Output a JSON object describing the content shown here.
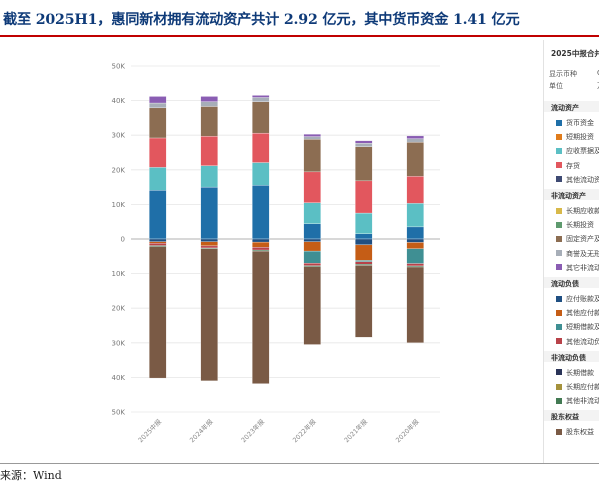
{
  "title": "截至 2025H1，惠同新材拥有流动资产共计 2.92 亿元，其中货币资金 1.41 亿元",
  "source": "来源：Wind",
  "panel": {
    "head": "2025中报合并",
    "meta": [
      {
        "label": "显示币种",
        "value": "C"
      },
      {
        "label": "单位",
        "value": "万"
      }
    ],
    "sections": [
      {
        "label": "流动资产",
        "items": [
          {
            "label": "货币资金",
            "color": "#1f6fa8"
          },
          {
            "label": "短期投资",
            "color": "#e07c1c"
          },
          {
            "label": "应收票据及",
            "color": "#5bbfc4"
          },
          {
            "label": "存货",
            "color": "#e2575e"
          },
          {
            "label": "其他流动资",
            "color": "#3e4a73"
          }
        ]
      },
      {
        "label": "非流动资产",
        "items": [
          {
            "label": "长期应收款",
            "color": "#d8b94a"
          },
          {
            "label": "长期投资",
            "color": "#5e9a6e"
          },
          {
            "label": "固定资产及",
            "color": "#8c6d52"
          },
          {
            "label": "商誉及无形",
            "color": "#a7aeb8"
          },
          {
            "label": "其它非流动",
            "color": "#8a5db3"
          }
        ]
      },
      {
        "label": "流动负债",
        "items": [
          {
            "label": "应付账款及",
            "color": "#1f4f82"
          },
          {
            "label": "其他应付款",
            "color": "#c55d16"
          },
          {
            "label": "短期借款及",
            "color": "#3f8f93"
          },
          {
            "label": "其他流动负",
            "color": "#b84249"
          }
        ]
      },
      {
        "label": "非流动负债",
        "items": [
          {
            "label": "长期借款",
            "color": "#2a3458"
          },
          {
            "label": "长期应付款",
            "color": "#a5923c"
          },
          {
            "label": "其他非流动",
            "color": "#437a53"
          }
        ]
      },
      {
        "label": "股东权益",
        "items": [
          {
            "label": "股东权益",
            "color": "#7a5a45"
          }
        ]
      }
    ]
  },
  "chart_data": {
    "type": "bar",
    "stacked": true,
    "categories": [
      "2025中报",
      "2024年报",
      "2023年报",
      "2022年报",
      "2021年报",
      "2020年报"
    ],
    "ylim": [
      -50000,
      50000
    ],
    "yticks": [
      {
        "value": 50000,
        "label": "50K"
      },
      {
        "value": 40000,
        "label": "40K"
      },
      {
        "value": 30000,
        "label": "30K"
      },
      {
        "value": 20000,
        "label": "20K"
      },
      {
        "value": 10000,
        "label": "10K"
      },
      {
        "value": 0,
        "label": "0"
      },
      {
        "value": -10000,
        "label": "10K"
      },
      {
        "value": -20000,
        "label": "20K"
      },
      {
        "value": -30000,
        "label": "30K"
      },
      {
        "value": -40000,
        "label": "40K"
      },
      {
        "value": -50000,
        "label": "50K"
      }
    ],
    "grid": true,
    "legend": "right",
    "series": [
      {
        "name": "货币资金",
        "color": "#1f6fa8",
        "values": [
          14100,
          15000,
          15500,
          4400,
          1500,
          3500
        ]
      },
      {
        "name": "应收票据及",
        "color": "#5bbfc4",
        "values": [
          6600,
          6200,
          6600,
          6100,
          6000,
          6800
        ]
      },
      {
        "name": "存货",
        "color": "#e2575e",
        "values": [
          8500,
          8500,
          8500,
          8900,
          9300,
          7800
        ]
      },
      {
        "name": "固定资产及",
        "color": "#8c6d52",
        "values": [
          8700,
          8600,
          9100,
          9400,
          9900,
          9900
        ]
      },
      {
        "name": "商誉及无形",
        "color": "#a7aeb8",
        "values": [
          1400,
          1400,
          1200,
          800,
          1000,
          1000
        ]
      },
      {
        "name": "其它非流动",
        "color": "#8a5db3",
        "values": [
          1900,
          1500,
          600,
          700,
          700,
          800
        ]
      },
      {
        "name": "应付账款及",
        "color": "#1f4f82",
        "values": [
          -800,
          -800,
          -900,
          -800,
          -1700,
          -1000
        ]
      },
      {
        "name": "其他应付款",
        "color": "#c55d16",
        "values": [
          -400,
          -1200,
          -1500,
          -2700,
          -4500,
          -1800
        ]
      },
      {
        "name": "短期借款及",
        "color": "#3f8f93",
        "values": [
          0,
          0,
          0,
          -3500,
          -400,
          -4300
        ]
      },
      {
        "name": "其他流动负",
        "color": "#b84249",
        "values": [
          -700,
          -600,
          -800,
          -700,
          -700,
          -700
        ]
      },
      {
        "name": "其他非流动",
        "color": "#437a53",
        "values": [
          -300,
          -200,
          -300,
          -300,
          -300,
          -300
        ]
      },
      {
        "name": "股东权益",
        "color": "#7a5a45",
        "values": [
          -38000,
          -38200,
          -38300,
          -22500,
          -20800,
          -21900
        ]
      }
    ]
  }
}
